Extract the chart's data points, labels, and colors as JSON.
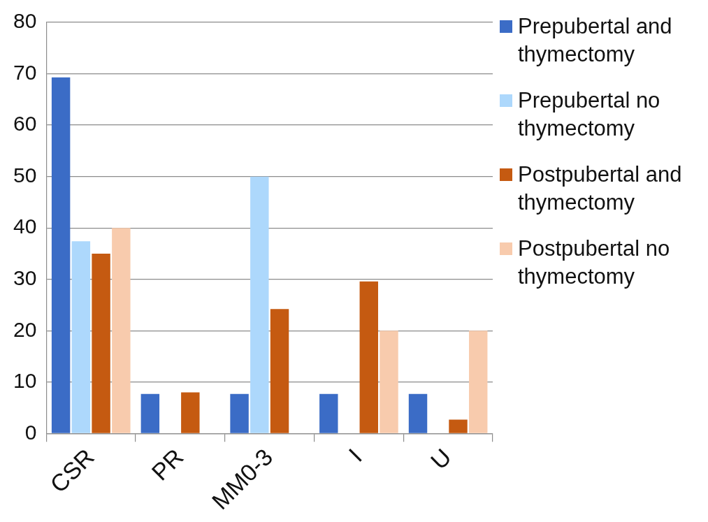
{
  "chart_data": {
    "type": "bar",
    "categories": [
      "CSR",
      "PR",
      "MM0-3",
      "I",
      "U"
    ],
    "series": [
      {
        "name": "Prepubertal and thymectomy",
        "color": "#3b6cc6",
        "values": [
          69.3,
          7.7,
          7.7,
          7.7,
          7.7
        ]
      },
      {
        "name": "Prepubertal no thymectomy",
        "color": "#add8fc",
        "values": [
          37.4,
          0,
          50,
          0,
          0
        ]
      },
      {
        "name": "Postpubertal and thymectomy",
        "color": "#c55a11",
        "values": [
          35,
          8,
          24.2,
          29.6,
          2.7
        ]
      },
      {
        "name": "Postpubertal no thymectomy",
        "color": "#f8cbad",
        "values": [
          40,
          0,
          0,
          20,
          20
        ]
      }
    ],
    "ylim": [
      0,
      80
    ],
    "yticks": [
      0,
      10,
      20,
      30,
      40,
      50,
      60,
      70,
      80
    ],
    "grid": "y",
    "legend": "right"
  }
}
